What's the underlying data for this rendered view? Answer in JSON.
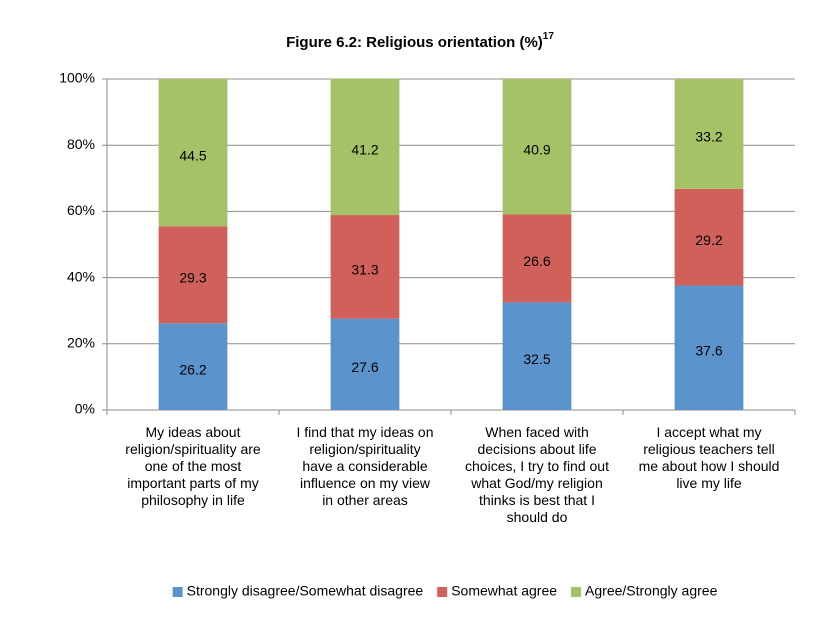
{
  "chart_data": {
    "type": "stacked_bar",
    "title": "Figure 6.2: Religious orientation (%)",
    "title_superscript": "17",
    "categories": [
      "My ideas about\nreligion/spirituality are\none of the most\nimportant parts of my\nphilosophy in life",
      "I find that my ideas on\nreligion/spirituality\nhave a considerable\ninfluence on my view\nin other areas",
      "When faced with\ndecisions about life\nchoices, I try to find out\nwhat God/my religion\nthinks is best that I\nshould do",
      "I accept what my\nreligious teachers tell\nme about how I should\nlive my life"
    ],
    "series": [
      {
        "name": "Strongly disagree/Somewhat disagree",
        "color": "#5b93cc",
        "values": [
          26.2,
          27.6,
          32.5,
          37.6
        ]
      },
      {
        "name": "Somewhat agree",
        "color": "#d0615a",
        "values": [
          29.3,
          31.3,
          26.6,
          29.2
        ]
      },
      {
        "name": "Agree/Strongly agree",
        "color": "#a5c266",
        "values": [
          44.5,
          41.2,
          40.9,
          33.2
        ]
      }
    ],
    "ylim": [
      0,
      100
    ],
    "yticks": [
      {
        "value": 0,
        "label": "0%"
      },
      {
        "value": 20,
        "label": "20%"
      },
      {
        "value": 40,
        "label": "40%"
      },
      {
        "value": 60,
        "label": "60%"
      },
      {
        "value": 80,
        "label": "80%"
      },
      {
        "value": 100,
        "label": "100%"
      }
    ],
    "grid": true,
    "legend": "bottom"
  }
}
